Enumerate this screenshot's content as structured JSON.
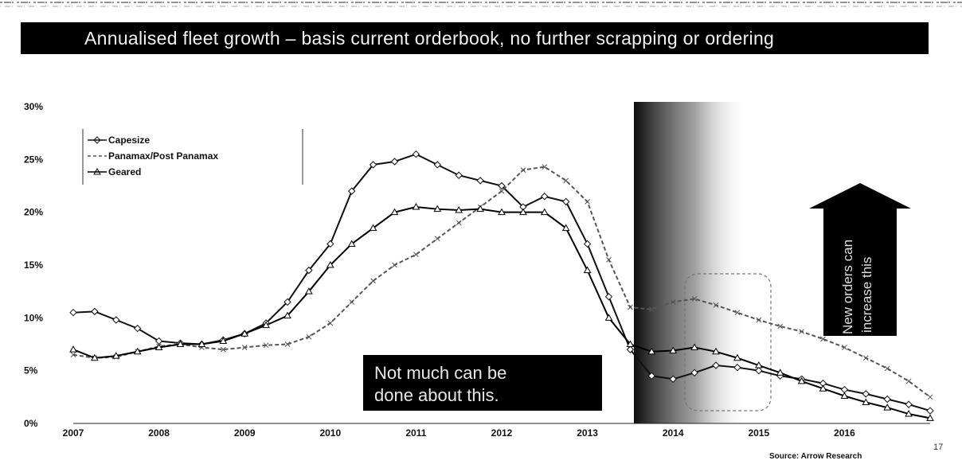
{
  "title": "Annualised fleet growth – basis current orderbook, no further scrapping or ordering",
  "source": "Source: Arrow Research",
  "page_number": "17",
  "annotations": {
    "not_much_line1": "Not much can be",
    "not_much_line2": "done about this.",
    "new_orders_line1": "New orders can",
    "new_orders_line2": "increase this"
  },
  "chart_data": {
    "type": "line",
    "title": "Annualised fleet growth – basis current orderbook, no further scrapping or ordering",
    "xlabel": "",
    "ylabel": "",
    "x": [
      2007,
      2007.25,
      2007.5,
      2007.75,
      2008,
      2008.25,
      2008.5,
      2008.75,
      2009,
      2009.25,
      2009.5,
      2009.75,
      2010,
      2010.25,
      2010.5,
      2010.75,
      2011,
      2011.25,
      2011.5,
      2011.75,
      2012,
      2012.25,
      2012.5,
      2012.75,
      2013,
      2013.25,
      2013.5,
      2013.75,
      2014,
      2014.25,
      2014.5,
      2014.75,
      2015,
      2015.25,
      2015.5,
      2015.75,
      2016,
      2016.25,
      2016.5,
      2016.75,
      2017
    ],
    "x_ticks": [
      "2007",
      "2008",
      "2009",
      "2010",
      "2011",
      "2012",
      "2013",
      "2014",
      "2015",
      "2016"
    ],
    "x_tick_values": [
      2007,
      2008,
      2009,
      2010,
      2011,
      2012,
      2013,
      2014,
      2015,
      2016
    ],
    "y_ticks": [
      "0%",
      "5%",
      "10%",
      "15%",
      "20%",
      "25%",
      "30%"
    ],
    "y_tick_values": [
      0,
      5,
      10,
      15,
      20,
      25,
      30
    ],
    "ylim": [
      0,
      30
    ],
    "xlim": [
      2007,
      2017
    ],
    "grid": false,
    "legend_position": "top-left",
    "series": [
      {
        "name": "Capesize",
        "color": "#111111",
        "marker": "diamond",
        "values": [
          10.5,
          10.6,
          9.8,
          9.0,
          7.8,
          7.6,
          7.5,
          7.9,
          8.5,
          9.5,
          11.5,
          14.5,
          17.0,
          22.0,
          24.5,
          24.8,
          25.5,
          24.5,
          23.5,
          23.0,
          22.5,
          20.5,
          21.5,
          21.0,
          17.0,
          12.0,
          7.0,
          4.5,
          4.2,
          4.8,
          5.5,
          5.3,
          5.0,
          4.5,
          4.2,
          3.8,
          3.2,
          2.8,
          2.3,
          1.8,
          1.2
        ]
      },
      {
        "name": "Panamax/Post Panamax",
        "color": "#555555",
        "marker": "x",
        "values": [
          6.5,
          6.2,
          6.3,
          6.8,
          7.3,
          7.5,
          7.2,
          7.0,
          7.2,
          7.4,
          7.5,
          8.2,
          9.5,
          11.5,
          13.5,
          15.0,
          16.0,
          17.5,
          19.0,
          20.5,
          22.0,
          24.0,
          24.3,
          23.0,
          21.0,
          15.5,
          11.0,
          10.8,
          11.5,
          11.8,
          11.2,
          10.5,
          9.8,
          9.2,
          8.7,
          8.0,
          7.2,
          6.2,
          5.2,
          4.0,
          2.5
        ]
      },
      {
        "name": "Geared",
        "color": "#000000",
        "marker": "triangle",
        "values": [
          7.0,
          6.2,
          6.4,
          6.8,
          7.2,
          7.5,
          7.5,
          7.8,
          8.5,
          9.3,
          10.2,
          12.5,
          15.0,
          17.0,
          18.5,
          20.0,
          20.5,
          20.3,
          20.2,
          20.3,
          20.0,
          20.0,
          20.0,
          18.5,
          14.5,
          10.0,
          7.5,
          6.8,
          6.9,
          7.2,
          6.8,
          6.2,
          5.5,
          4.8,
          4.0,
          3.3,
          2.6,
          2.0,
          1.5,
          0.9,
          0.5
        ]
      }
    ]
  }
}
